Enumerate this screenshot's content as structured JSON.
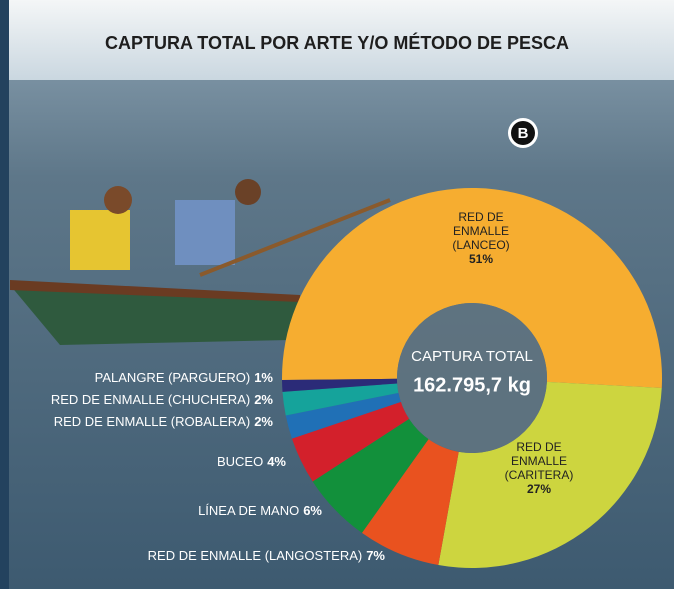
{
  "chart_data": {
    "type": "pie",
    "title": "CAPTURA TOTAL POR ARTE Y/O MÉTODO DE PESCA",
    "badge": "B",
    "center_label": "CAPTURA TOTAL",
    "center_value": "162.795,7 kg",
    "categories": [
      "RED DE ENMALLE (LANCEO)",
      "RED DE ENMALLE (CARITERA)",
      "RED DE ENMALLE (LANGOSTERA)",
      "LÍNEA DE MANO",
      "BUCEO",
      "RED DE ENMALLE (ROBALERA)",
      "RED DE ENMALLE (CHUCHERA)",
      "PALANGRE (PARGUERO)"
    ],
    "values": [
      51,
      27,
      7,
      6,
      4,
      2,
      2,
      1
    ],
    "value_labels": [
      "51%",
      "27%",
      "7%",
      "6%",
      "4%",
      "2%",
      "2%",
      "1%"
    ],
    "colors": [
      "#f6ad30",
      "#cdd53f",
      "#e9521f",
      "#12903b",
      "#d3202b",
      "#2070b6",
      "#15a39b",
      "#2b2b78"
    ]
  }
}
